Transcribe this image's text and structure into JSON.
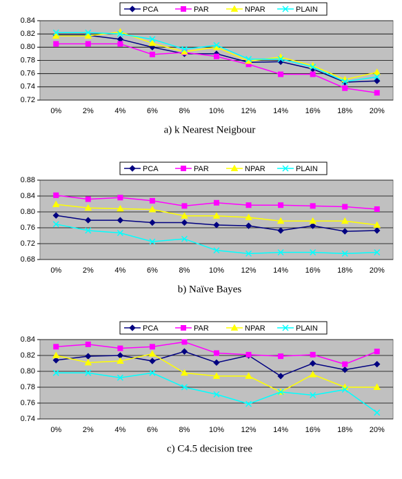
{
  "chart_data": [
    {
      "type": "line",
      "caption": "a) k Nearest Neigbour",
      "categories": [
        "0%",
        "2%",
        "4%",
        "6%",
        "8%",
        "10%",
        "12%",
        "14%",
        "16%",
        "18%",
        "20%"
      ],
      "ylim": [
        0.72,
        0.84
      ],
      "yticks": [
        0.72,
        0.74,
        0.76,
        0.78,
        {
          "value": 0.8,
          "label": "0.80"
        },
        0.82,
        0.84
      ],
      "grid": true,
      "legend": "top",
      "series": [
        {
          "name": "PCA",
          "color": "#000080",
          "marker": "diamond",
          "values": [
            0.818,
            0.818,
            0.812,
            0.8,
            0.79,
            0.79,
            0.777,
            0.778,
            0.767,
            0.747,
            0.749
          ]
        },
        {
          "name": "PAR",
          "color": "#ff00ff",
          "marker": "square",
          "values": [
            0.805,
            0.805,
            0.805,
            0.789,
            0.792,
            0.786,
            0.774,
            0.759,
            0.759,
            0.738,
            0.731
          ]
        },
        {
          "name": "NPAR",
          "color": "#ffff00",
          "marker": "triangle",
          "values": [
            0.817,
            0.817,
            0.823,
            0.806,
            0.793,
            0.8,
            0.779,
            0.785,
            0.772,
            0.751,
            0.762
          ]
        },
        {
          "name": "PLAIN",
          "color": "#00ffff",
          "marker": "cross",
          "values": [
            0.822,
            0.822,
            0.82,
            0.812,
            0.797,
            0.803,
            0.782,
            0.782,
            0.77,
            0.748,
            0.755
          ]
        }
      ]
    },
    {
      "type": "line",
      "caption": "b) Naïve Bayes",
      "categories": [
        "0%",
        "2%",
        "4%",
        "6%",
        "8%",
        "10%",
        "12%",
        "14%",
        "16%",
        "18%",
        "20%"
      ],
      "ylim": [
        0.68,
        0.88
      ],
      "yticks": [
        0.68,
        0.72,
        0.76,
        {
          "value": 0.8,
          "label": "0.80"
        },
        0.84,
        0.88
      ],
      "grid": true,
      "legend": "top",
      "series": [
        {
          "name": "PCA",
          "color": "#000080",
          "marker": "diamond",
          "values": [
            0.791,
            0.779,
            0.779,
            0.773,
            0.773,
            0.767,
            0.765,
            0.753,
            0.765,
            0.751,
            0.753
          ]
        },
        {
          "name": "PAR",
          "color": "#ff00ff",
          "marker": "square",
          "values": [
            0.842,
            0.832,
            0.836,
            0.828,
            0.815,
            0.823,
            0.817,
            0.817,
            0.815,
            0.813,
            0.807
          ]
        },
        {
          "name": "NPAR",
          "color": "#ffff00",
          "marker": "triangle",
          "values": [
            0.819,
            0.81,
            0.808,
            0.806,
            0.79,
            0.79,
            0.786,
            0.777,
            0.777,
            0.777,
            0.767
          ]
        },
        {
          "name": "PLAIN",
          "color": "#00ffff",
          "marker": "cross",
          "values": [
            0.769,
            0.753,
            0.747,
            0.725,
            0.732,
            0.703,
            0.695,
            0.698,
            0.698,
            0.695,
            0.698
          ]
        }
      ]
    },
    {
      "type": "line",
      "caption": "c) C4.5 decision tree",
      "categories": [
        "0%",
        "2%",
        "4%",
        "6%",
        "8%",
        "10%",
        "12%",
        "14%",
        "16%",
        "18%",
        "20%"
      ],
      "ylim": [
        0.74,
        0.84
      ],
      "yticks": [
        0.74,
        0.76,
        0.78,
        {
          "value": 0.8,
          "label": "0.80"
        },
        0.82,
        0.84
      ],
      "grid": true,
      "legend": "top",
      "series": [
        {
          "name": "PCA",
          "color": "#000080",
          "marker": "diamond",
          "values": [
            0.814,
            0.819,
            0.82,
            0.813,
            0.825,
            0.811,
            0.82,
            0.794,
            0.81,
            0.802,
            0.809
          ]
        },
        {
          "name": "PAR",
          "color": "#ff00ff",
          "marker": "square",
          "values": [
            0.831,
            0.834,
            0.829,
            0.831,
            0.837,
            0.823,
            0.821,
            0.819,
            0.821,
            0.809,
            0.825
          ]
        },
        {
          "name": "NPAR",
          "color": "#ffff00",
          "marker": "triangle",
          "values": [
            0.82,
            0.811,
            0.813,
            0.822,
            0.798,
            0.794,
            0.794,
            0.774,
            0.796,
            0.78,
            0.78
          ]
        },
        {
          "name": "PLAIN",
          "color": "#00ffff",
          "marker": "cross",
          "values": [
            0.798,
            0.798,
            0.792,
            0.798,
            0.78,
            0.771,
            0.759,
            0.774,
            0.77,
            0.777,
            0.748
          ]
        }
      ]
    }
  ]
}
